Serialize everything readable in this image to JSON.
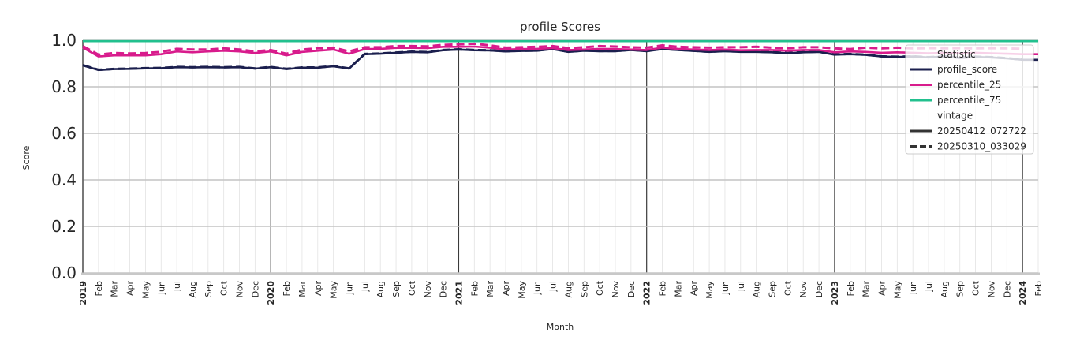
{
  "chart_data": {
    "type": "line",
    "title": "profile Scores",
    "xlabel": "Month",
    "ylabel": "Score",
    "ylim": [
      0.0,
      1.0
    ],
    "yticks": [
      "0.0",
      "0.2",
      "0.4",
      "0.6",
      "0.8",
      "1.0"
    ],
    "grid": true,
    "legend_position": "upper right",
    "x": [
      "2019",
      "Feb",
      "Mar",
      "Apr",
      "May",
      "Jun",
      "Jul",
      "Aug",
      "Sep",
      "Oct",
      "Nov",
      "Dec",
      "2020",
      "Feb",
      "Mar",
      "Apr",
      "May",
      "Jun",
      "Jul",
      "Aug",
      "Sep",
      "Oct",
      "Nov",
      "Dec",
      "2021",
      "Feb",
      "Mar",
      "Apr",
      "May",
      "Jun",
      "Jul",
      "Aug",
      "Sep",
      "Oct",
      "Nov",
      "Dec",
      "2022",
      "Feb",
      "Mar",
      "Apr",
      "May",
      "Jun",
      "Jul",
      "Aug",
      "Sep",
      "Oct",
      "Nov",
      "Dec",
      "2023",
      "Feb",
      "Mar",
      "Apr",
      "May",
      "Jun",
      "Jul",
      "Aug",
      "Sep",
      "Oct",
      "Nov",
      "Dec",
      "2024",
      "Feb"
    ],
    "legend": {
      "statistic_title": "Statistic",
      "statistic_entries": [
        {
          "label": "profile_score",
          "color": "#1b1f4e"
        },
        {
          "label": "percentile_25",
          "color": "#d81b8c"
        },
        {
          "label": "percentile_75",
          "color": "#22c08e"
        }
      ],
      "vintage_title": "vintage",
      "vintage_entries": [
        {
          "label": "20250412_072722",
          "style": "solid"
        },
        {
          "label": "20250310_033029",
          "style": "dashed"
        }
      ]
    },
    "series": [
      {
        "name": "profile_score",
        "vintage": "20250412_072722",
        "color": "#1b1f4e",
        "style": "solid",
        "values": [
          0.892,
          0.872,
          0.876,
          0.877,
          0.879,
          0.88,
          0.884,
          0.883,
          0.884,
          0.883,
          0.884,
          0.878,
          0.884,
          0.876,
          0.882,
          0.882,
          0.888,
          0.878,
          0.94,
          0.942,
          0.946,
          0.95,
          0.948,
          0.957,
          0.96,
          0.957,
          0.956,
          0.952,
          0.954,
          0.955,
          0.962,
          0.95,
          0.955,
          0.953,
          0.953,
          0.958,
          0.953,
          0.962,
          0.958,
          0.954,
          0.95,
          0.953,
          0.95,
          0.95,
          0.948,
          0.944,
          0.948,
          0.95,
          0.938,
          0.94,
          0.937,
          0.93,
          0.928,
          0.93,
          0.926,
          0.93,
          0.924,
          0.928,
          0.926,
          0.922,
          0.916,
          0.916
        ]
      },
      {
        "name": "profile_score",
        "vintage": "20250310_033029",
        "color": "#1b1f4e",
        "style": "dashed",
        "values": [
          0.893,
          0.873,
          0.877,
          0.878,
          0.88,
          0.881,
          0.885,
          0.884,
          0.885,
          0.884,
          0.885,
          0.879,
          0.885,
          0.877,
          0.883,
          0.883,
          0.889,
          0.879,
          0.941,
          0.943,
          0.947,
          0.951,
          0.949,
          0.958,
          0.961,
          0.958,
          0.957,
          0.953,
          0.955,
          0.956,
          0.963,
          0.951,
          0.956,
          0.954,
          0.954,
          0.959,
          0.954,
          0.963,
          0.959,
          0.955,
          0.951,
          0.954,
          0.951,
          0.951,
          0.949,
          0.945,
          0.949,
          0.951,
          0.939,
          0.941,
          0.938,
          0.931,
          0.929,
          0.931,
          0.927,
          0.931,
          0.925,
          0.929,
          0.927,
          0.923,
          0.917,
          null
        ]
      },
      {
        "name": "percentile_25",
        "vintage": "20250412_072722",
        "color": "#d81b8c",
        "style": "solid",
        "values": [
          0.968,
          0.93,
          0.935,
          0.935,
          0.935,
          0.94,
          0.952,
          0.948,
          0.952,
          0.955,
          0.952,
          0.945,
          0.952,
          0.935,
          0.95,
          0.955,
          0.96,
          0.942,
          0.962,
          0.963,
          0.967,
          0.967,
          0.966,
          0.972,
          0.972,
          0.973,
          0.968,
          0.96,
          0.962,
          0.963,
          0.966,
          0.958,
          0.96,
          0.963,
          0.962,
          0.96,
          0.958,
          0.968,
          0.963,
          0.96,
          0.958,
          0.96,
          0.957,
          0.958,
          0.958,
          0.955,
          0.958,
          0.958,
          0.948,
          0.952,
          0.95,
          0.946,
          0.948,
          0.946,
          0.944,
          0.946,
          0.944,
          0.946,
          0.944,
          0.942,
          0.94,
          0.94
        ]
      },
      {
        "name": "percentile_25",
        "vintage": "20250310_033029",
        "color": "#d81b8c",
        "style": "dashed",
        "values": [
          0.975,
          0.938,
          0.945,
          0.943,
          0.945,
          0.95,
          0.963,
          0.96,
          0.96,
          0.965,
          0.96,
          0.952,
          0.958,
          0.942,
          0.96,
          0.965,
          0.968,
          0.952,
          0.97,
          0.97,
          0.975,
          0.975,
          0.974,
          0.98,
          0.982,
          0.985,
          0.978,
          0.968,
          0.97,
          0.972,
          0.975,
          0.966,
          0.97,
          0.975,
          0.973,
          0.97,
          0.968,
          0.978,
          0.972,
          0.97,
          0.968,
          0.97,
          0.97,
          0.972,
          0.968,
          0.965,
          0.97,
          0.97,
          0.965,
          0.962,
          0.968,
          0.965,
          0.968,
          0.965,
          0.966,
          0.965,
          0.966,
          0.965,
          0.966,
          0.965,
          0.963,
          null
        ]
      },
      {
        "name": "percentile_75",
        "vintage": "20250412_072722",
        "color": "#22c08e",
        "style": "solid",
        "values": [
          0.996,
          0.996,
          0.996,
          0.996,
          0.996,
          0.996,
          0.996,
          0.996,
          0.996,
          0.996,
          0.996,
          0.996,
          0.996,
          0.996,
          0.996,
          0.996,
          0.996,
          0.996,
          0.996,
          0.996,
          0.996,
          0.996,
          0.996,
          0.996,
          0.996,
          0.996,
          0.996,
          0.996,
          0.996,
          0.996,
          0.996,
          0.996,
          0.996,
          0.996,
          0.996,
          0.996,
          0.996,
          0.996,
          0.996,
          0.996,
          0.996,
          0.996,
          0.996,
          0.996,
          0.996,
          0.996,
          0.996,
          0.996,
          0.996,
          0.996,
          0.996,
          0.996,
          0.996,
          0.996,
          0.996,
          0.996,
          0.996,
          0.996,
          0.996,
          0.996,
          0.996,
          0.996
        ]
      }
    ]
  }
}
